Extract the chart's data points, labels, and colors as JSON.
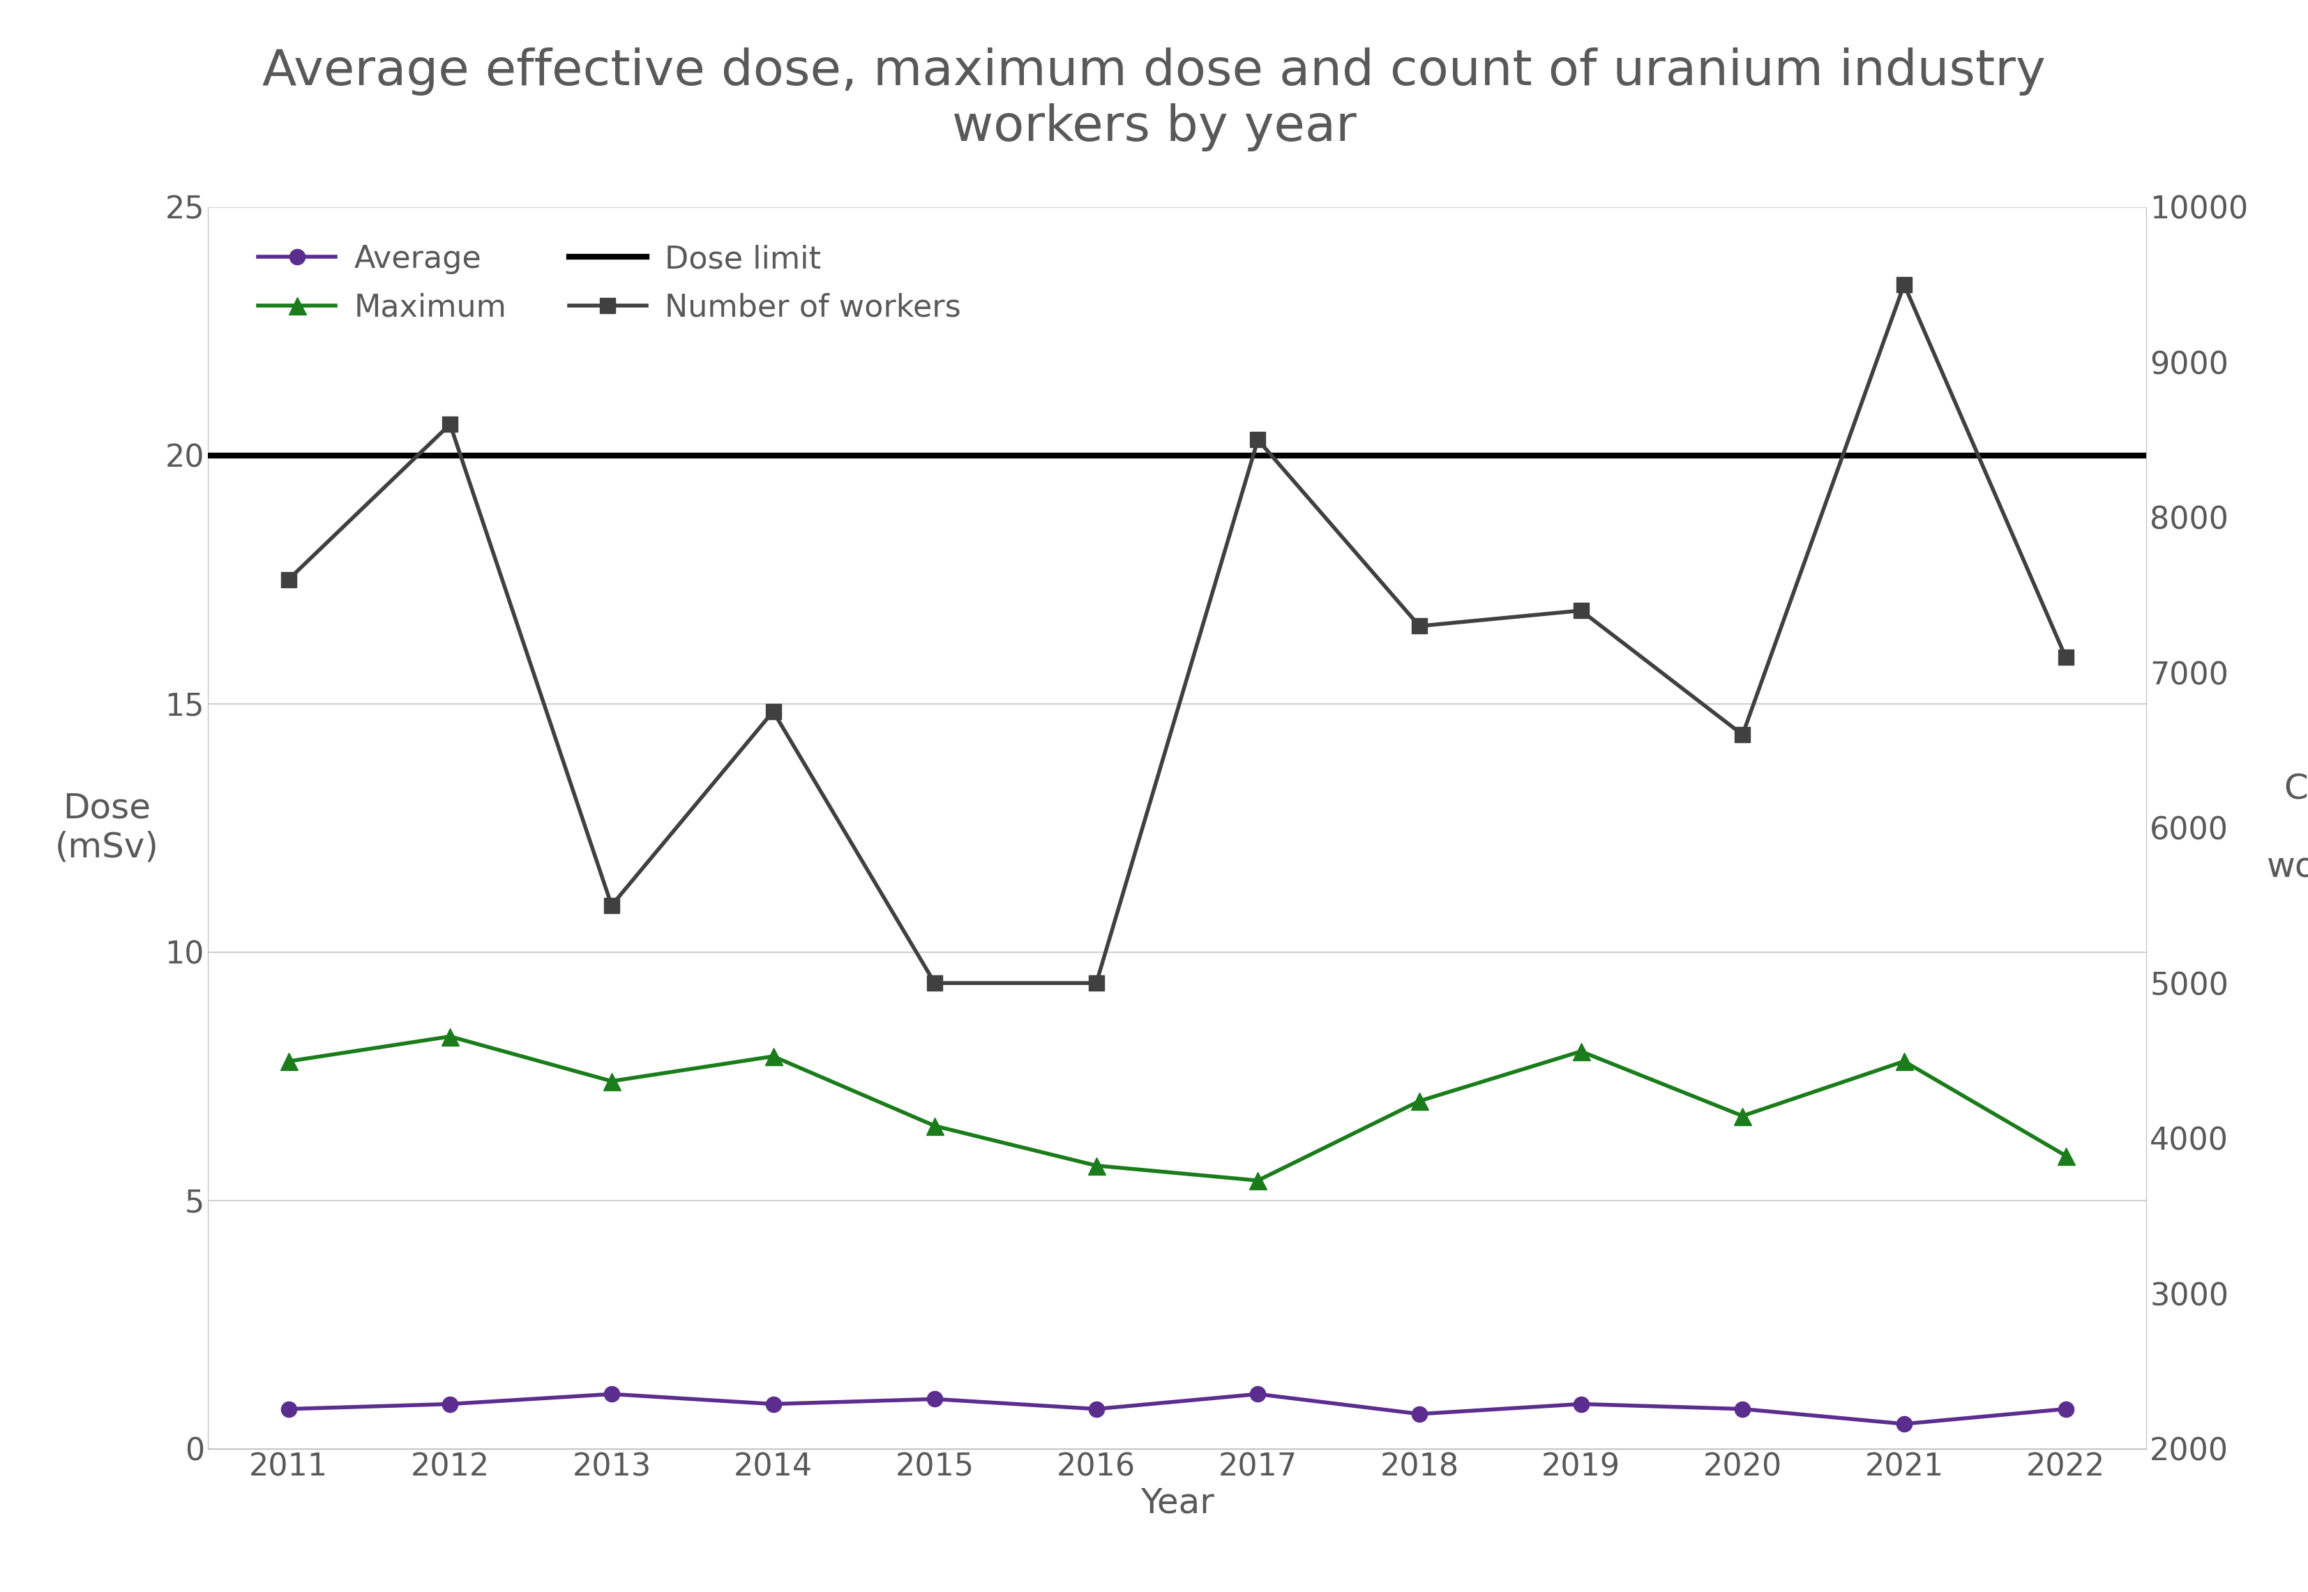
{
  "title": "Average effective dose, maximum dose and count of uranium industry\nworkers by year",
  "years": [
    2011,
    2012,
    2013,
    2014,
    2015,
    2016,
    2017,
    2018,
    2019,
    2020,
    2021,
    2022
  ],
  "average": [
    0.8,
    0.9,
    1.1,
    0.9,
    1.0,
    0.8,
    1.1,
    0.7,
    0.9,
    0.8,
    0.5,
    0.8
  ],
  "maximum": [
    7.8,
    8.3,
    7.4,
    7.9,
    6.5,
    5.7,
    5.4,
    7.0,
    8.0,
    6.7,
    7.8,
    5.9
  ],
  "workers": [
    7600,
    8600,
    5500,
    6750,
    5000,
    5000,
    8500,
    7300,
    7400,
    6600,
    9500,
    7100
  ],
  "dose_limit": 20,
  "ylabel_left": "Dose\n(mSv)",
  "ylabel_right": "Count\nof\nworkers",
  "xlabel": "Year",
  "ylim_left": [
    0,
    25
  ],
  "ylim_right": [
    2000,
    10000
  ],
  "yticks_left": [
    0,
    5,
    10,
    15,
    20,
    25
  ],
  "yticks_right": [
    2000,
    3000,
    4000,
    5000,
    6000,
    7000,
    8000,
    9000,
    10000
  ],
  "average_color": "#5b2d8e",
  "maximum_color": "#1a7c1a",
  "workers_color": "#404040",
  "dose_limit_color": "#000000",
  "background_color": "#ffffff",
  "title_color": "#595959",
  "axis_label_color": "#595959",
  "tick_label_color": "#595959",
  "grid_color": "#d0d0d0",
  "title_fontsize": 52,
  "axis_label_fontsize": 36,
  "tick_fontsize": 32,
  "legend_fontsize": 32,
  "line_width": 4.0,
  "marker_size_circle": 16,
  "marker_size_triangle": 18,
  "marker_size_square": 16,
  "dose_limit_lw": 6.0,
  "xlim": [
    2010.5,
    2022.5
  ]
}
